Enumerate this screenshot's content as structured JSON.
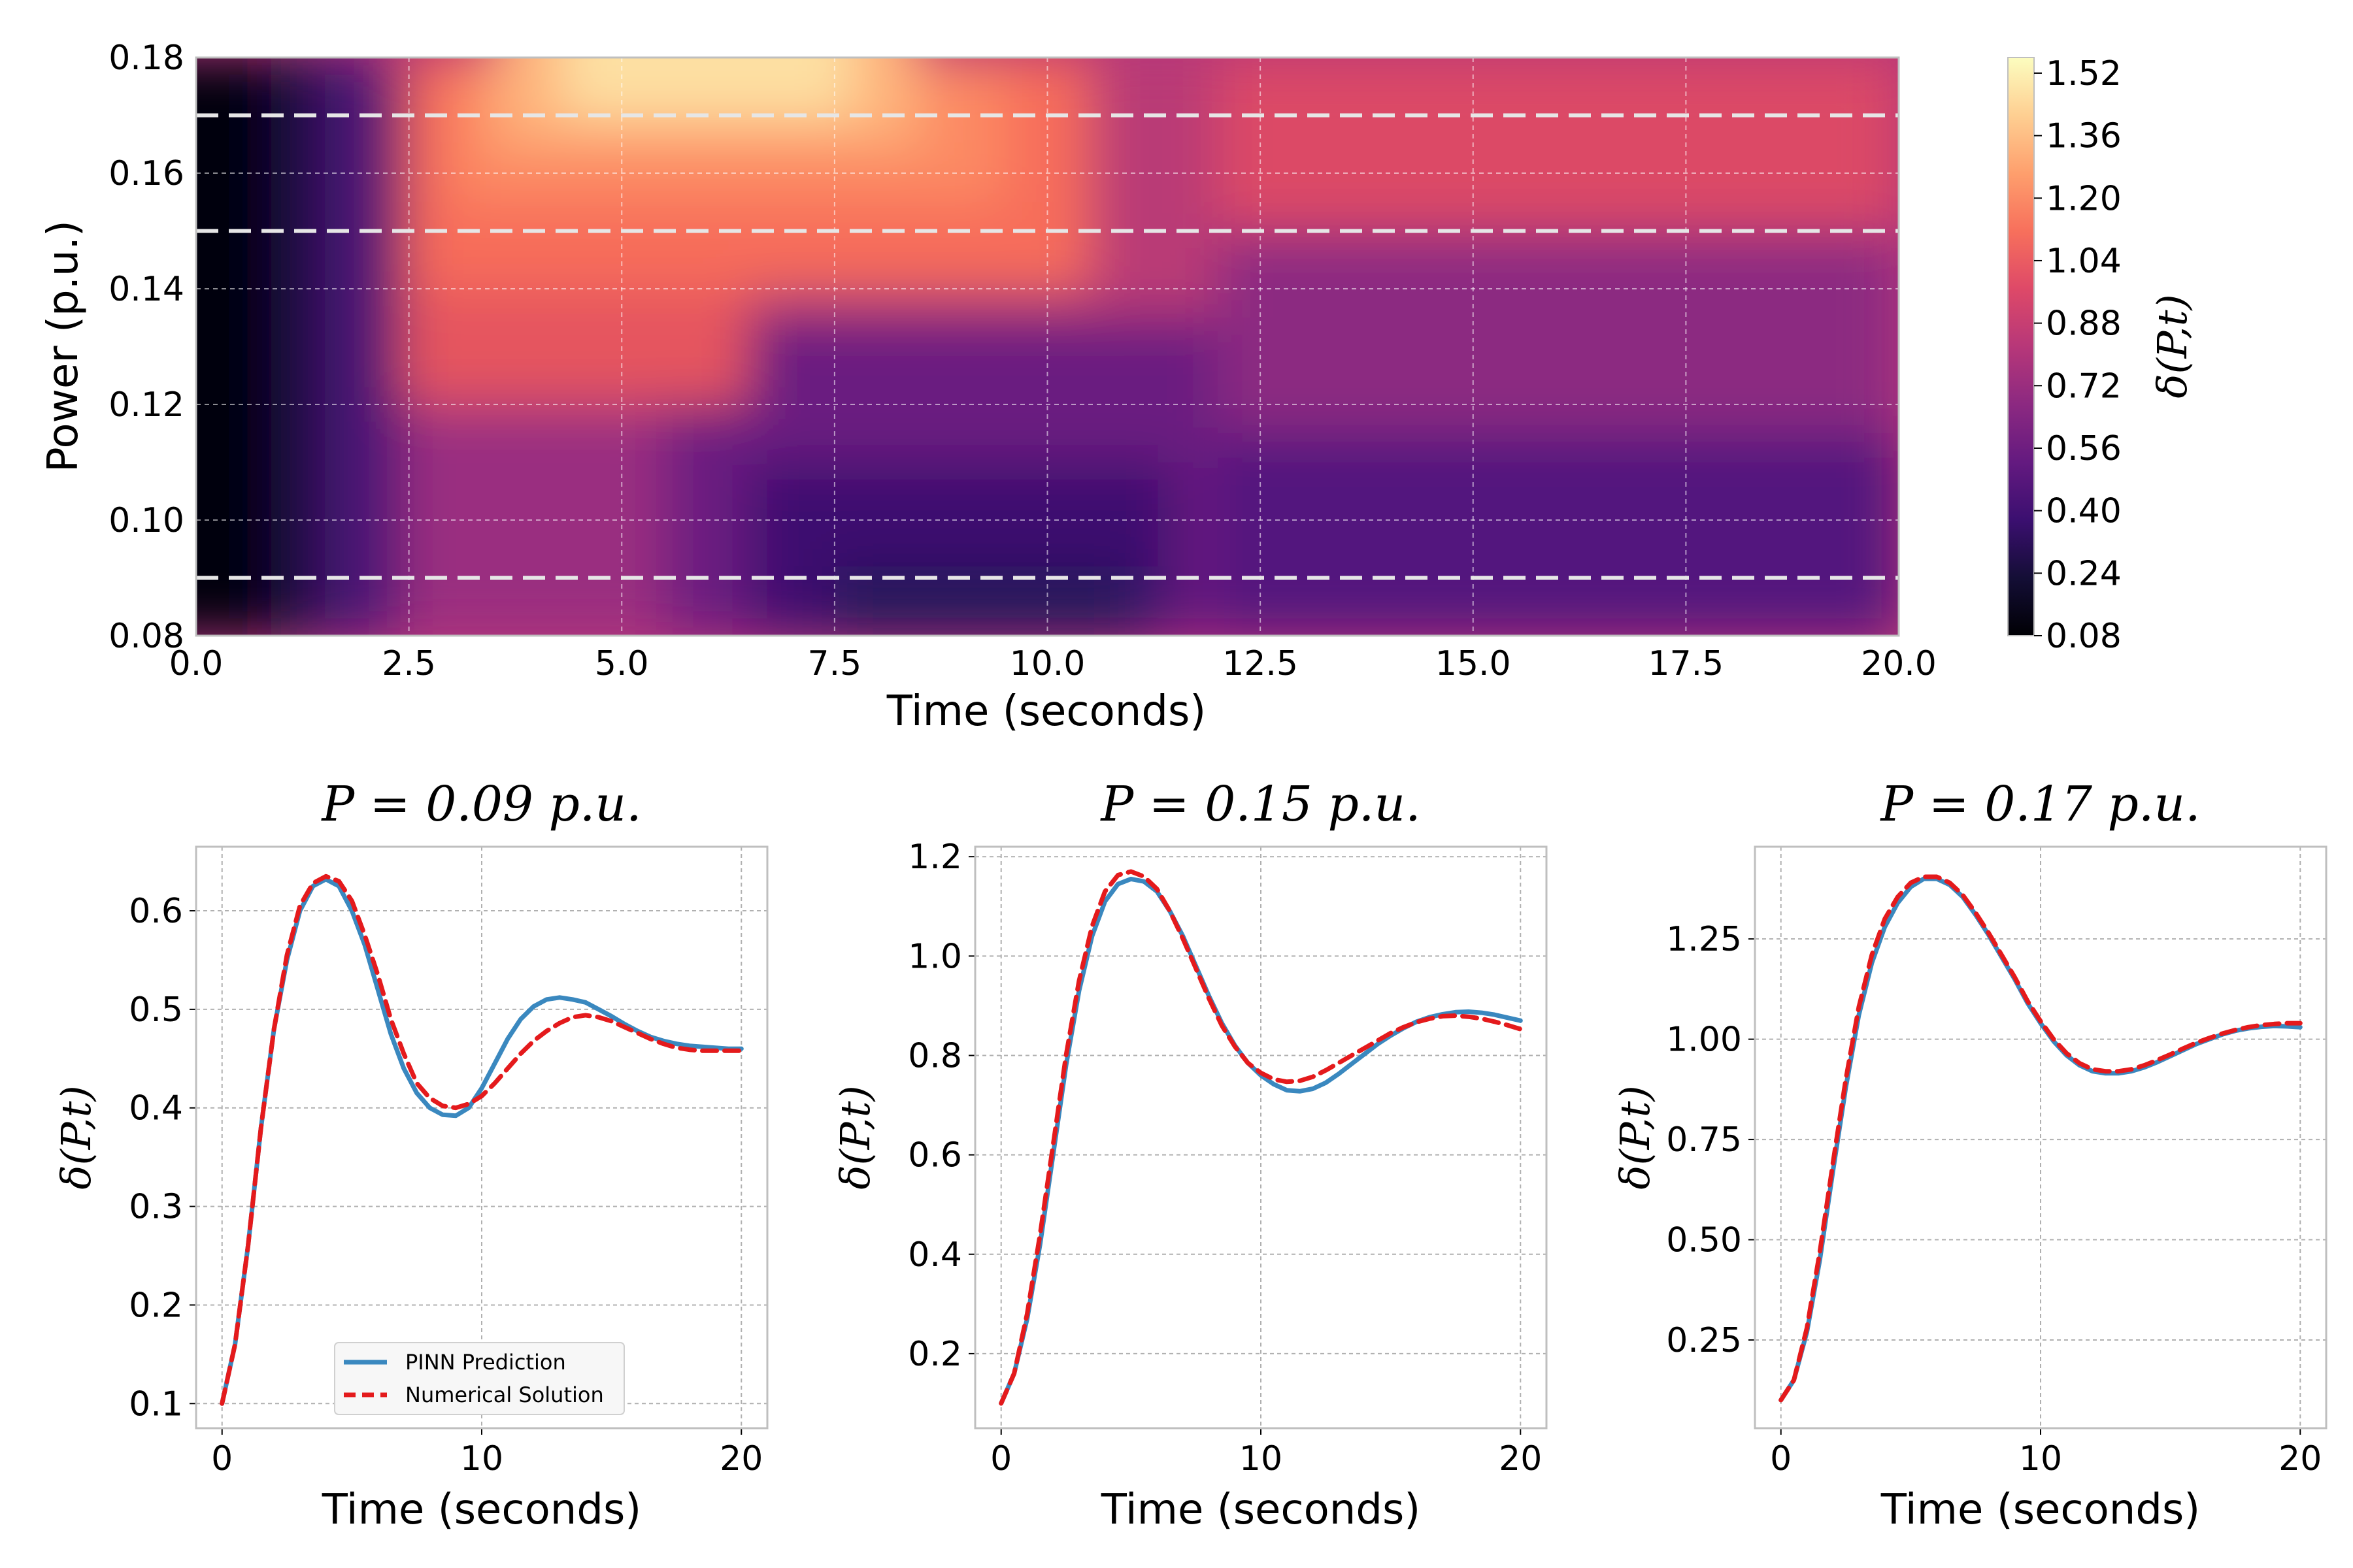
{
  "colors": {
    "background": "#ffffff",
    "grid": "#b0b0b0",
    "frame": "#bfbfbf",
    "pinn": "#3a88bf",
    "numerical": "#e41a1c",
    "dashed_overlay": "#e6e6e6"
  },
  "chart_data": [
    {
      "type": "heatmap",
      "colormap": "magma",
      "xlabel": "Time (seconds)",
      "ylabel": "Power (p.u.)",
      "xlim": [
        0,
        20
      ],
      "ylim": [
        0.08,
        0.18
      ],
      "x_ticks": [
        "0.0",
        "2.5",
        "5.0",
        "7.5",
        "10.0",
        "12.5",
        "15.0",
        "17.5",
        "20.0"
      ],
      "y_ticks": [
        "0.08",
        "0.10",
        "0.12",
        "0.14",
        "0.16",
        "0.18"
      ],
      "colorbar_label": "δ(P,t)",
      "colorbar_range": [
        0.08,
        1.56
      ],
      "colorbar_ticks": [
        "0.08",
        "0.24",
        "0.40",
        "0.56",
        "0.72",
        "0.88",
        "1.04",
        "1.20",
        "1.36",
        "1.52"
      ],
      "dashed_lines_at_power": [
        0.09,
        0.15,
        0.17
      ],
      "grid": true
    },
    {
      "type": "line",
      "title": "P = 0.09 p.u.",
      "xlabel": "Time (seconds)",
      "ylabel": "δ(P,t)",
      "xlim": [
        -1,
        21
      ],
      "ylim": [
        0.075,
        0.665
      ],
      "x_ticks": [
        "0",
        "10",
        "20"
      ],
      "y_ticks": [
        "0.1",
        "0.2",
        "0.3",
        "0.4",
        "0.5",
        "0.6"
      ],
      "legend_position": "lower-center",
      "series": [
        {
          "name": "PINN Prediction",
          "x": [
            0,
            0.5,
            1,
            1.5,
            2,
            2.5,
            3,
            3.5,
            4,
            4.5,
            5,
            5.5,
            6,
            6.5,
            7,
            7.5,
            8,
            8.5,
            9,
            9.5,
            10,
            10.5,
            11,
            11.5,
            12,
            12.5,
            13,
            13.5,
            14,
            14.5,
            15,
            15.5,
            16,
            16.5,
            17,
            17.5,
            18,
            18.5,
            19,
            19.5,
            20
          ],
          "values": [
            0.1,
            0.16,
            0.26,
            0.38,
            0.48,
            0.55,
            0.6,
            0.625,
            0.632,
            0.625,
            0.6,
            0.565,
            0.52,
            0.475,
            0.44,
            0.415,
            0.4,
            0.393,
            0.392,
            0.4,
            0.42,
            0.445,
            0.47,
            0.49,
            0.503,
            0.51,
            0.512,
            0.51,
            0.507,
            0.5,
            0.493,
            0.485,
            0.478,
            0.472,
            0.468,
            0.465,
            0.463,
            0.462,
            0.461,
            0.46,
            0.46
          ]
        },
        {
          "name": "Numerical Solution",
          "x": [
            0,
            0.5,
            1,
            1.5,
            2,
            2.5,
            3,
            3.5,
            4,
            4.5,
            5,
            5.5,
            6,
            6.5,
            7,
            7.5,
            8,
            8.5,
            9,
            9.5,
            10,
            10.5,
            11,
            11.5,
            12,
            12.5,
            13,
            13.5,
            14,
            14.5,
            15,
            15.5,
            16,
            16.5,
            17,
            17.5,
            18,
            18.5,
            19,
            19.5,
            20
          ],
          "values": [
            0.1,
            0.16,
            0.26,
            0.38,
            0.48,
            0.555,
            0.605,
            0.628,
            0.635,
            0.63,
            0.61,
            0.575,
            0.535,
            0.49,
            0.455,
            0.425,
            0.41,
            0.402,
            0.4,
            0.404,
            0.412,
            0.425,
            0.44,
            0.455,
            0.468,
            0.478,
            0.486,
            0.492,
            0.494,
            0.492,
            0.488,
            0.482,
            0.476,
            0.47,
            0.465,
            0.461,
            0.459,
            0.458,
            0.458,
            0.458,
            0.458
          ]
        }
      ],
      "grid": true
    },
    {
      "type": "line",
      "title": "P = 0.15 p.u.",
      "xlabel": "Time (seconds)",
      "ylabel": "δ(P,t)",
      "xlim": [
        -1,
        21
      ],
      "ylim": [
        0.05,
        1.22
      ],
      "x_ticks": [
        "0",
        "10",
        "20"
      ],
      "y_ticks": [
        "0.2",
        "0.4",
        "0.6",
        "0.8",
        "1.0",
        "1.2"
      ],
      "series": [
        {
          "name": "PINN Prediction",
          "x": [
            0,
            0.5,
            1,
            1.5,
            2,
            2.5,
            3,
            3.5,
            4,
            4.5,
            5,
            5.5,
            6,
            6.5,
            7,
            7.5,
            8,
            8.5,
            9,
            9.5,
            10,
            10.5,
            11,
            11.5,
            12,
            12.5,
            13,
            13.5,
            14,
            14.5,
            15,
            15.5,
            16,
            16.5,
            17,
            17.5,
            18,
            18.5,
            19,
            19.5,
            20
          ],
          "values": [
            0.1,
            0.16,
            0.27,
            0.42,
            0.6,
            0.78,
            0.93,
            1.04,
            1.11,
            1.145,
            1.155,
            1.15,
            1.13,
            1.09,
            1.04,
            0.98,
            0.92,
            0.865,
            0.82,
            0.785,
            0.76,
            0.742,
            0.73,
            0.728,
            0.733,
            0.745,
            0.763,
            0.783,
            0.803,
            0.823,
            0.84,
            0.855,
            0.868,
            0.877,
            0.883,
            0.887,
            0.888,
            0.886,
            0.882,
            0.876,
            0.87
          ]
        },
        {
          "name": "Numerical Solution",
          "x": [
            0,
            0.5,
            1,
            1.5,
            2,
            2.5,
            3,
            3.5,
            4,
            4.5,
            5,
            5.5,
            6,
            6.5,
            7,
            7.5,
            8,
            8.5,
            9,
            9.5,
            10,
            10.5,
            11,
            11.5,
            12,
            12.5,
            13,
            13.5,
            14,
            14.5,
            15,
            15.5,
            16,
            16.5,
            17,
            17.5,
            18,
            18.5,
            19,
            19.5,
            20
          ],
          "values": [
            0.1,
            0.16,
            0.28,
            0.44,
            0.62,
            0.8,
            0.95,
            1.06,
            1.13,
            1.163,
            1.17,
            1.16,
            1.135,
            1.09,
            1.035,
            0.975,
            0.915,
            0.86,
            0.818,
            0.785,
            0.765,
            0.752,
            0.747,
            0.749,
            0.757,
            0.77,
            0.785,
            0.8,
            0.815,
            0.83,
            0.845,
            0.857,
            0.867,
            0.874,
            0.879,
            0.88,
            0.878,
            0.874,
            0.868,
            0.861,
            0.853
          ]
        }
      ],
      "grid": true
    },
    {
      "type": "line",
      "title": "P = 0.17 p.u.",
      "xlabel": "Time (seconds)",
      "ylabel": "δ(P,t)",
      "xlim": [
        -1,
        21
      ],
      "ylim": [
        0.03,
        1.48
      ],
      "x_ticks": [
        "0",
        "10",
        "20"
      ],
      "y_ticks": [
        "0.25",
        "0.50",
        "0.75",
        "1.00",
        "1.25"
      ],
      "series": [
        {
          "name": "PINN Prediction",
          "x": [
            0,
            0.5,
            1,
            1.5,
            2,
            2.5,
            3,
            3.5,
            4,
            4.5,
            5,
            5.5,
            6,
            6.5,
            7,
            7.5,
            8,
            8.5,
            9,
            9.5,
            10,
            10.5,
            11,
            11.5,
            12,
            12.5,
            13,
            13.5,
            14,
            14.5,
            15,
            15.5,
            16,
            16.5,
            17,
            17.5,
            18,
            18.5,
            19,
            19.5,
            20
          ],
          "values": [
            0.1,
            0.15,
            0.27,
            0.45,
            0.67,
            0.88,
            1.06,
            1.19,
            1.28,
            1.34,
            1.38,
            1.4,
            1.4,
            1.385,
            1.355,
            1.31,
            1.26,
            1.205,
            1.15,
            1.09,
            1.04,
            0.995,
            0.96,
            0.935,
            0.92,
            0.915,
            0.915,
            0.92,
            0.93,
            0.943,
            0.958,
            0.973,
            0.988,
            1.0,
            1.012,
            1.021,
            1.027,
            1.031,
            1.033,
            1.032,
            1.03
          ]
        },
        {
          "name": "Numerical Solution",
          "x": [
            0,
            0.5,
            1,
            1.5,
            2,
            2.5,
            3,
            3.5,
            4,
            4.5,
            5,
            5.5,
            6,
            6.5,
            7,
            7.5,
            8,
            8.5,
            9,
            9.5,
            10,
            10.5,
            11,
            11.5,
            12,
            12.5,
            13,
            13.5,
            14,
            14.5,
            15,
            15.5,
            16,
            16.5,
            17,
            17.5,
            18,
            18.5,
            19,
            19.5,
            20
          ],
          "values": [
            0.1,
            0.15,
            0.28,
            0.47,
            0.69,
            0.9,
            1.08,
            1.21,
            1.3,
            1.355,
            1.39,
            1.405,
            1.405,
            1.39,
            1.36,
            1.315,
            1.265,
            1.21,
            1.155,
            1.095,
            1.045,
            1.0,
            0.965,
            0.94,
            0.925,
            0.92,
            0.92,
            0.925,
            0.935,
            0.948,
            0.962,
            0.977,
            0.991,
            1.003,
            1.014,
            1.023,
            1.03,
            1.035,
            1.038,
            1.04,
            1.04
          ]
        }
      ],
      "grid": true
    }
  ]
}
